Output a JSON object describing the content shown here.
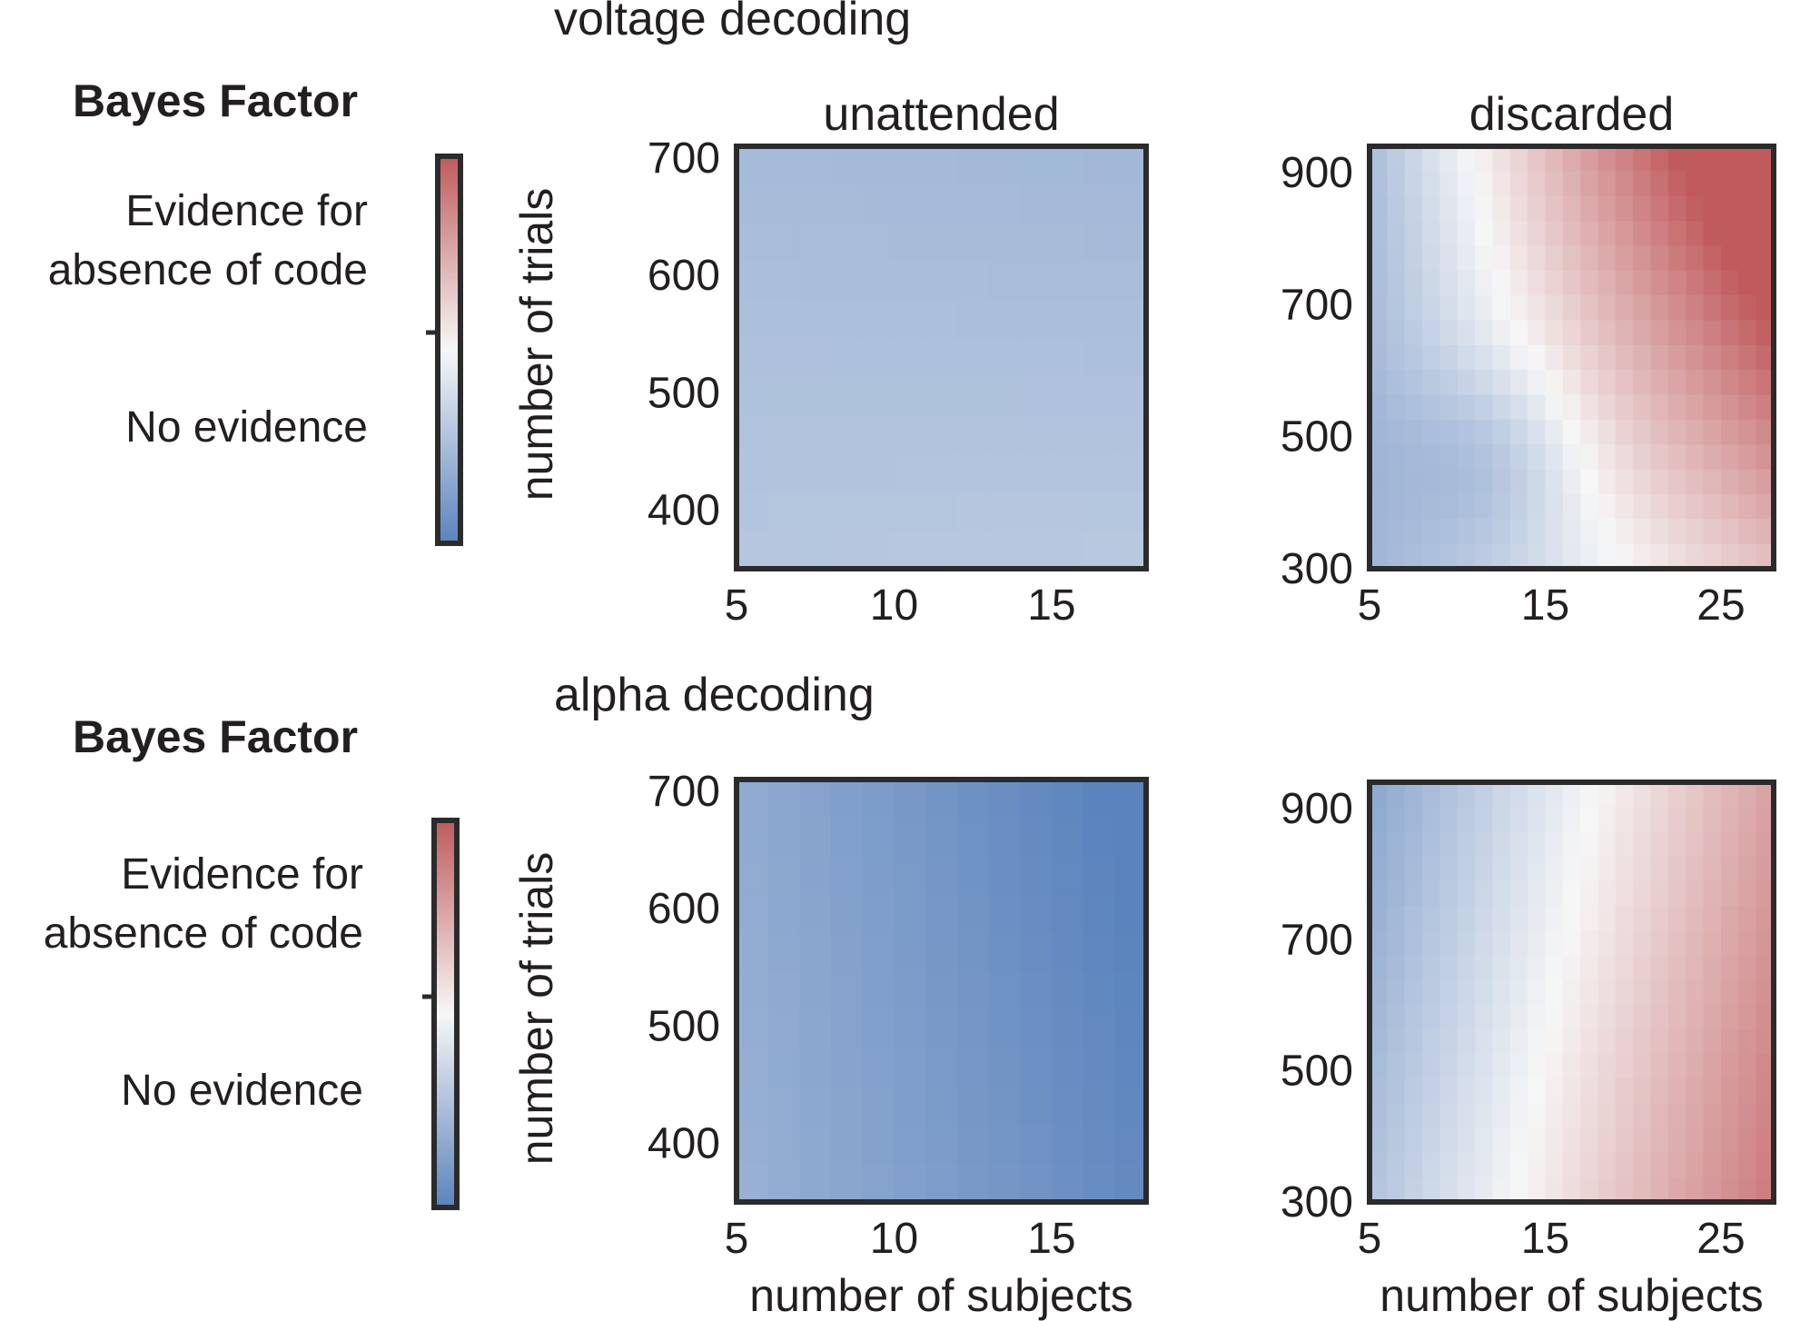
{
  "colors": {
    "neg": "#5b83bd",
    "mid": "#f7f7f7",
    "pos": "#c05a5c",
    "frame": "#2b2b2b",
    "text": "#231f20"
  },
  "rows": [
    {
      "section_title": "voltage decoding",
      "legend": {
        "title": "Bayes Factor",
        "label_top_line1": "Evidence for",
        "label_top_line2": "absence of code",
        "label_bottom": "No evidence"
      },
      "ylabel": "number of trials"
    },
    {
      "section_title": "alpha decoding",
      "legend": {
        "title": "Bayes Factor",
        "label_top_line1": "Evidence for",
        "label_top_line2": "absence of code",
        "label_bottom": "No evidence"
      },
      "ylabel": "number of trials"
    }
  ],
  "chart_data": [
    {
      "type": "heatmap",
      "title": "unattended",
      "xlabel": "",
      "ylabel": "number of trials",
      "xlim": [
        5,
        18
      ],
      "ylim": [
        350,
        710
      ],
      "x_ticks": [
        5,
        10,
        15
      ],
      "y_ticks": [
        400,
        500,
        600,
        700
      ],
      "value_range": [
        -1,
        1
      ],
      "grid": false,
      "surface": {
        "base": -0.42,
        "x_slope": 0.02,
        "y_slope": -0.1,
        "xy_term": -0.05,
        "pos_boost": 0,
        "peak_x": 0.5,
        "peak_y": 0.3,
        "peak": 0
      },
      "nx": 13,
      "ny": 11
    },
    {
      "type": "heatmap",
      "title": "discarded",
      "xlabel": "",
      "ylabel": "",
      "xlim": [
        5,
        28
      ],
      "ylim": [
        300,
        940
      ],
      "x_ticks": [
        5,
        15,
        25
      ],
      "y_ticks": [
        300,
        500,
        700,
        900
      ],
      "value_range": [
        -1,
        1
      ],
      "grid": false,
      "surface": {
        "base": -0.55,
        "x_slope": 0.9,
        "y_slope": 0.05,
        "xy_term": 1.1,
        "pos_boost": 0,
        "peak_x": 0.3,
        "peak_y": 0.25,
        "peak": -0.25
      },
      "nx": 23,
      "ny": 17
    },
    {
      "type": "heatmap",
      "title": "",
      "xlabel": "number of subjects",
      "ylabel": "number of trials",
      "xlim": [
        5,
        18
      ],
      "ylim": [
        350,
        710
      ],
      "x_ticks": [
        5,
        10,
        15
      ],
      "y_ticks": [
        400,
        500,
        600,
        700
      ],
      "value_range": [
        -1,
        1
      ],
      "grid": false,
      "surface": {
        "base": -0.6,
        "x_slope": -0.35,
        "y_slope": -0.05,
        "xy_term": -0.05,
        "pos_boost": 0,
        "peak_x": 0.5,
        "peak_y": 0.5,
        "peak": 0
      },
      "nx": 13,
      "ny": 11
    },
    {
      "type": "heatmap",
      "title": "",
      "xlabel": "number of subjects",
      "ylabel": "",
      "xlim": [
        5,
        28
      ],
      "ylim": [
        300,
        940
      ],
      "x_ticks": [
        5,
        15,
        25
      ],
      "y_ticks": [
        300,
        500,
        700,
        900
      ],
      "value_range": [
        -1,
        1
      ],
      "grid": false,
      "surface": {
        "base": -0.45,
        "x_slope": 1.25,
        "y_slope": -0.25,
        "xy_term": 0.0,
        "pos_boost": 0,
        "peak_x": 0.5,
        "peak_y": 0.5,
        "peak": 0
      },
      "nx": 23,
      "ny": 17
    }
  ]
}
